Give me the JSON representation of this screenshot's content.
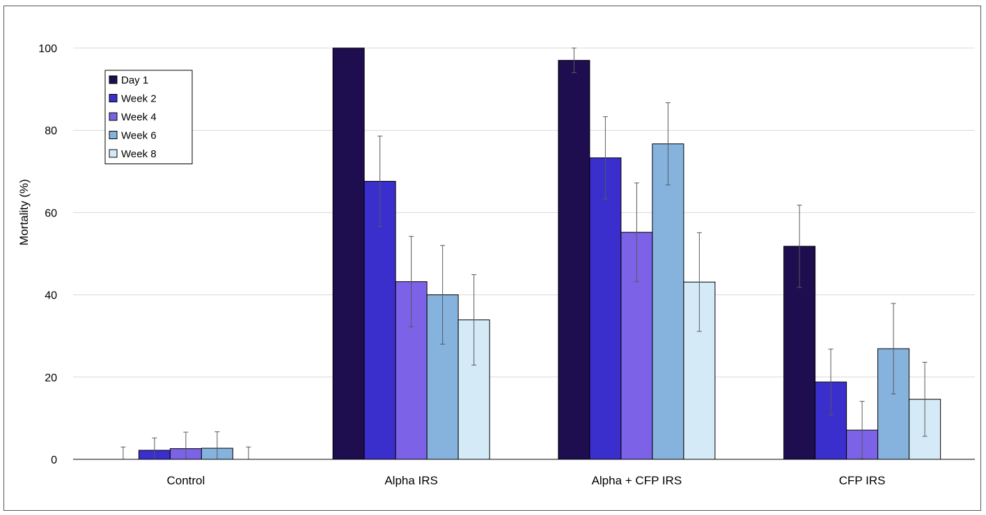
{
  "chart_data": {
    "type": "bar",
    "title": "",
    "xlabel": "",
    "ylabel": "Mortality (%)",
    "ylim": [
      0,
      100
    ],
    "yticks": [
      0,
      20,
      40,
      60,
      80,
      100
    ],
    "grid": true,
    "legend_position": "top-left",
    "categories": [
      "Control",
      "Alpha IRS",
      "Alpha + CFP IRS",
      "CFP IRS"
    ],
    "series": [
      {
        "name": "Day 1",
        "color": "#1e0e4f",
        "values": [
          0,
          100,
          97,
          51.8
        ],
        "errors": [
          3,
          0,
          3,
          10
        ]
      },
      {
        "name": "Week 2",
        "color": "#3a2fcc",
        "values": [
          2.2,
          67.6,
          73.3,
          18.8
        ],
        "errors": [
          3,
          11,
          10,
          8
        ]
      },
      {
        "name": "Week 4",
        "color": "#7b62e6",
        "values": [
          2.6,
          43.2,
          55.2,
          7.1
        ],
        "errors": [
          4,
          11,
          12,
          7
        ]
      },
      {
        "name": "Week 6",
        "color": "#86b3dd",
        "values": [
          2.7,
          40,
          76.7,
          26.9
        ],
        "errors": [
          4,
          12,
          10,
          11
        ]
      },
      {
        "name": "Week 8",
        "color": "#d4ebf7",
        "values": [
          0,
          33.9,
          43.1,
          14.6
        ],
        "errors": [
          3,
          11,
          12,
          9
        ]
      }
    ]
  }
}
